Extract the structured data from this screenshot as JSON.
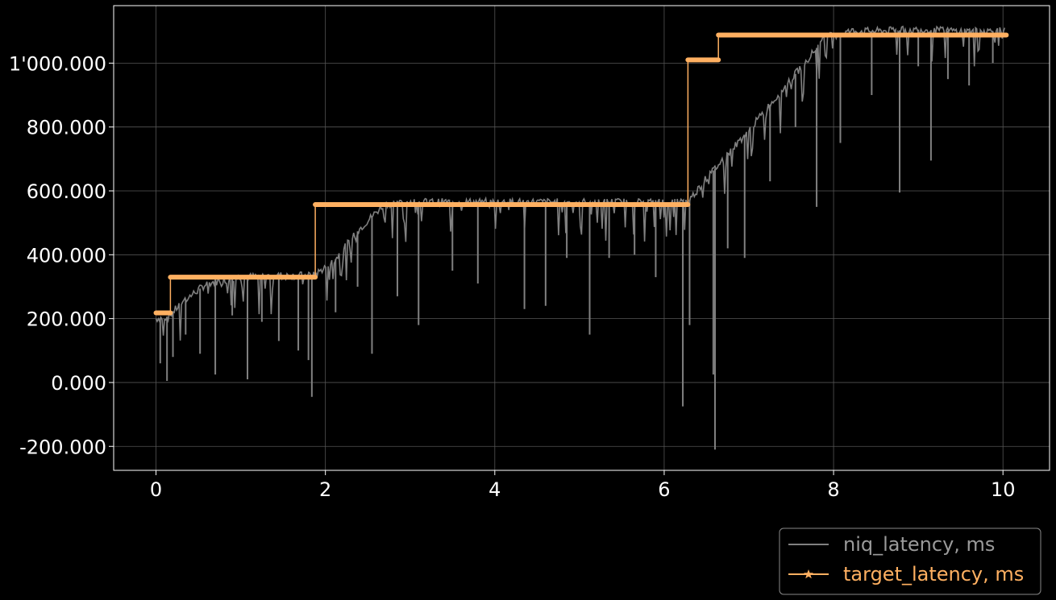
{
  "chart_data": {
    "type": "line",
    "title": "",
    "xlabel": "",
    "ylabel": "",
    "xlim": [
      -0.5,
      10.55
    ],
    "ylim": [
      -275,
      1180
    ],
    "grid": true,
    "legend_position": "bottom-right (outside plot)",
    "x_ticks": [
      0,
      2,
      4,
      6,
      8,
      10
    ],
    "x_tick_labels": [
      "0",
      "2",
      "4",
      "6",
      "8",
      "10"
    ],
    "y_ticks": [
      -200,
      0,
      200,
      400,
      600,
      800,
      1000
    ],
    "y_tick_labels": [
      "-200.000",
      "0.000",
      "200.000",
      "400.000",
      "600.000",
      "800.000",
      "1'000.000"
    ],
    "colors": {
      "background": "#000000",
      "grid": "#555555",
      "axes": "#ffffff",
      "niq": "#808080",
      "target": "#ffb061"
    },
    "series": [
      {
        "name": "niq_latency, ms",
        "color": "#808080",
        "line_style": "solid",
        "x": [
          0.0,
          0.15,
          0.3,
          0.6,
          1.0,
          1.5,
          1.86,
          2.1,
          2.4,
          2.7,
          3.0,
          3.5,
          4.0,
          4.5,
          5.0,
          5.5,
          6.0,
          6.28,
          6.5,
          7.0,
          7.5,
          7.9,
          8.2,
          8.5,
          9.0,
          9.5,
          10.02
        ],
        "values": [
          200,
          205,
          250,
          310,
          330,
          335,
          335,
          380,
          480,
          560,
          565,
          565,
          565,
          565,
          565,
          565,
          565,
          565,
          640,
          790,
          950,
          1080,
          1100,
          1100,
          1105,
          1100,
          1100
        ],
        "dips": [
          {
            "x": 0.05,
            "y": 60
          },
          {
            "x": 0.13,
            "y": 5
          },
          {
            "x": 0.2,
            "y": 80
          },
          {
            "x": 0.35,
            "y": 150
          },
          {
            "x": 0.52,
            "y": 90
          },
          {
            "x": 0.7,
            "y": 25
          },
          {
            "x": 0.9,
            "y": 210
          },
          {
            "x": 1.08,
            "y": 10
          },
          {
            "x": 1.25,
            "y": 190
          },
          {
            "x": 1.45,
            "y": 130
          },
          {
            "x": 1.68,
            "y": 100
          },
          {
            "x": 1.8,
            "y": 70
          },
          {
            "x": 1.84,
            "y": -45
          },
          {
            "x": 2.12,
            "y": 220
          },
          {
            "x": 2.38,
            "y": 300
          },
          {
            "x": 2.55,
            "y": 90
          },
          {
            "x": 2.85,
            "y": 270
          },
          {
            "x": 3.1,
            "y": 180
          },
          {
            "x": 3.5,
            "y": 350
          },
          {
            "x": 3.8,
            "y": 310
          },
          {
            "x": 4.35,
            "y": 230
          },
          {
            "x": 4.6,
            "y": 240
          },
          {
            "x": 4.85,
            "y": 390
          },
          {
            "x": 5.12,
            "y": 150
          },
          {
            "x": 5.35,
            "y": 390
          },
          {
            "x": 5.65,
            "y": 400
          },
          {
            "x": 5.9,
            "y": 330
          },
          {
            "x": 6.22,
            "y": -75
          },
          {
            "x": 6.3,
            "y": 180
          },
          {
            "x": 6.58,
            "y": 25
          },
          {
            "x": 6.6,
            "y": -210
          },
          {
            "x": 6.75,
            "y": 420
          },
          {
            "x": 6.95,
            "y": 390
          },
          {
            "x": 7.25,
            "y": 630
          },
          {
            "x": 7.55,
            "y": 800
          },
          {
            "x": 7.8,
            "y": 550
          },
          {
            "x": 8.08,
            "y": 750
          },
          {
            "x": 8.45,
            "y": 900
          },
          {
            "x": 8.78,
            "y": 595
          },
          {
            "x": 9.0,
            "y": 990
          },
          {
            "x": 9.15,
            "y": 695
          },
          {
            "x": 9.35,
            "y": 950
          },
          {
            "x": 9.6,
            "y": 930
          },
          {
            "x": 9.88,
            "y": 1000
          }
        ]
      },
      {
        "name": "target_latency, ms",
        "color": "#ffb061",
        "line_style": "solid",
        "marker": "star",
        "x": [
          0.0,
          0.17,
          0.17,
          1.88,
          1.88,
          6.28,
          6.28,
          6.64,
          6.64,
          10.04
        ],
        "values": [
          218,
          218,
          330,
          330,
          557,
          557,
          1010,
          1010,
          1088,
          1088
        ]
      }
    ]
  }
}
